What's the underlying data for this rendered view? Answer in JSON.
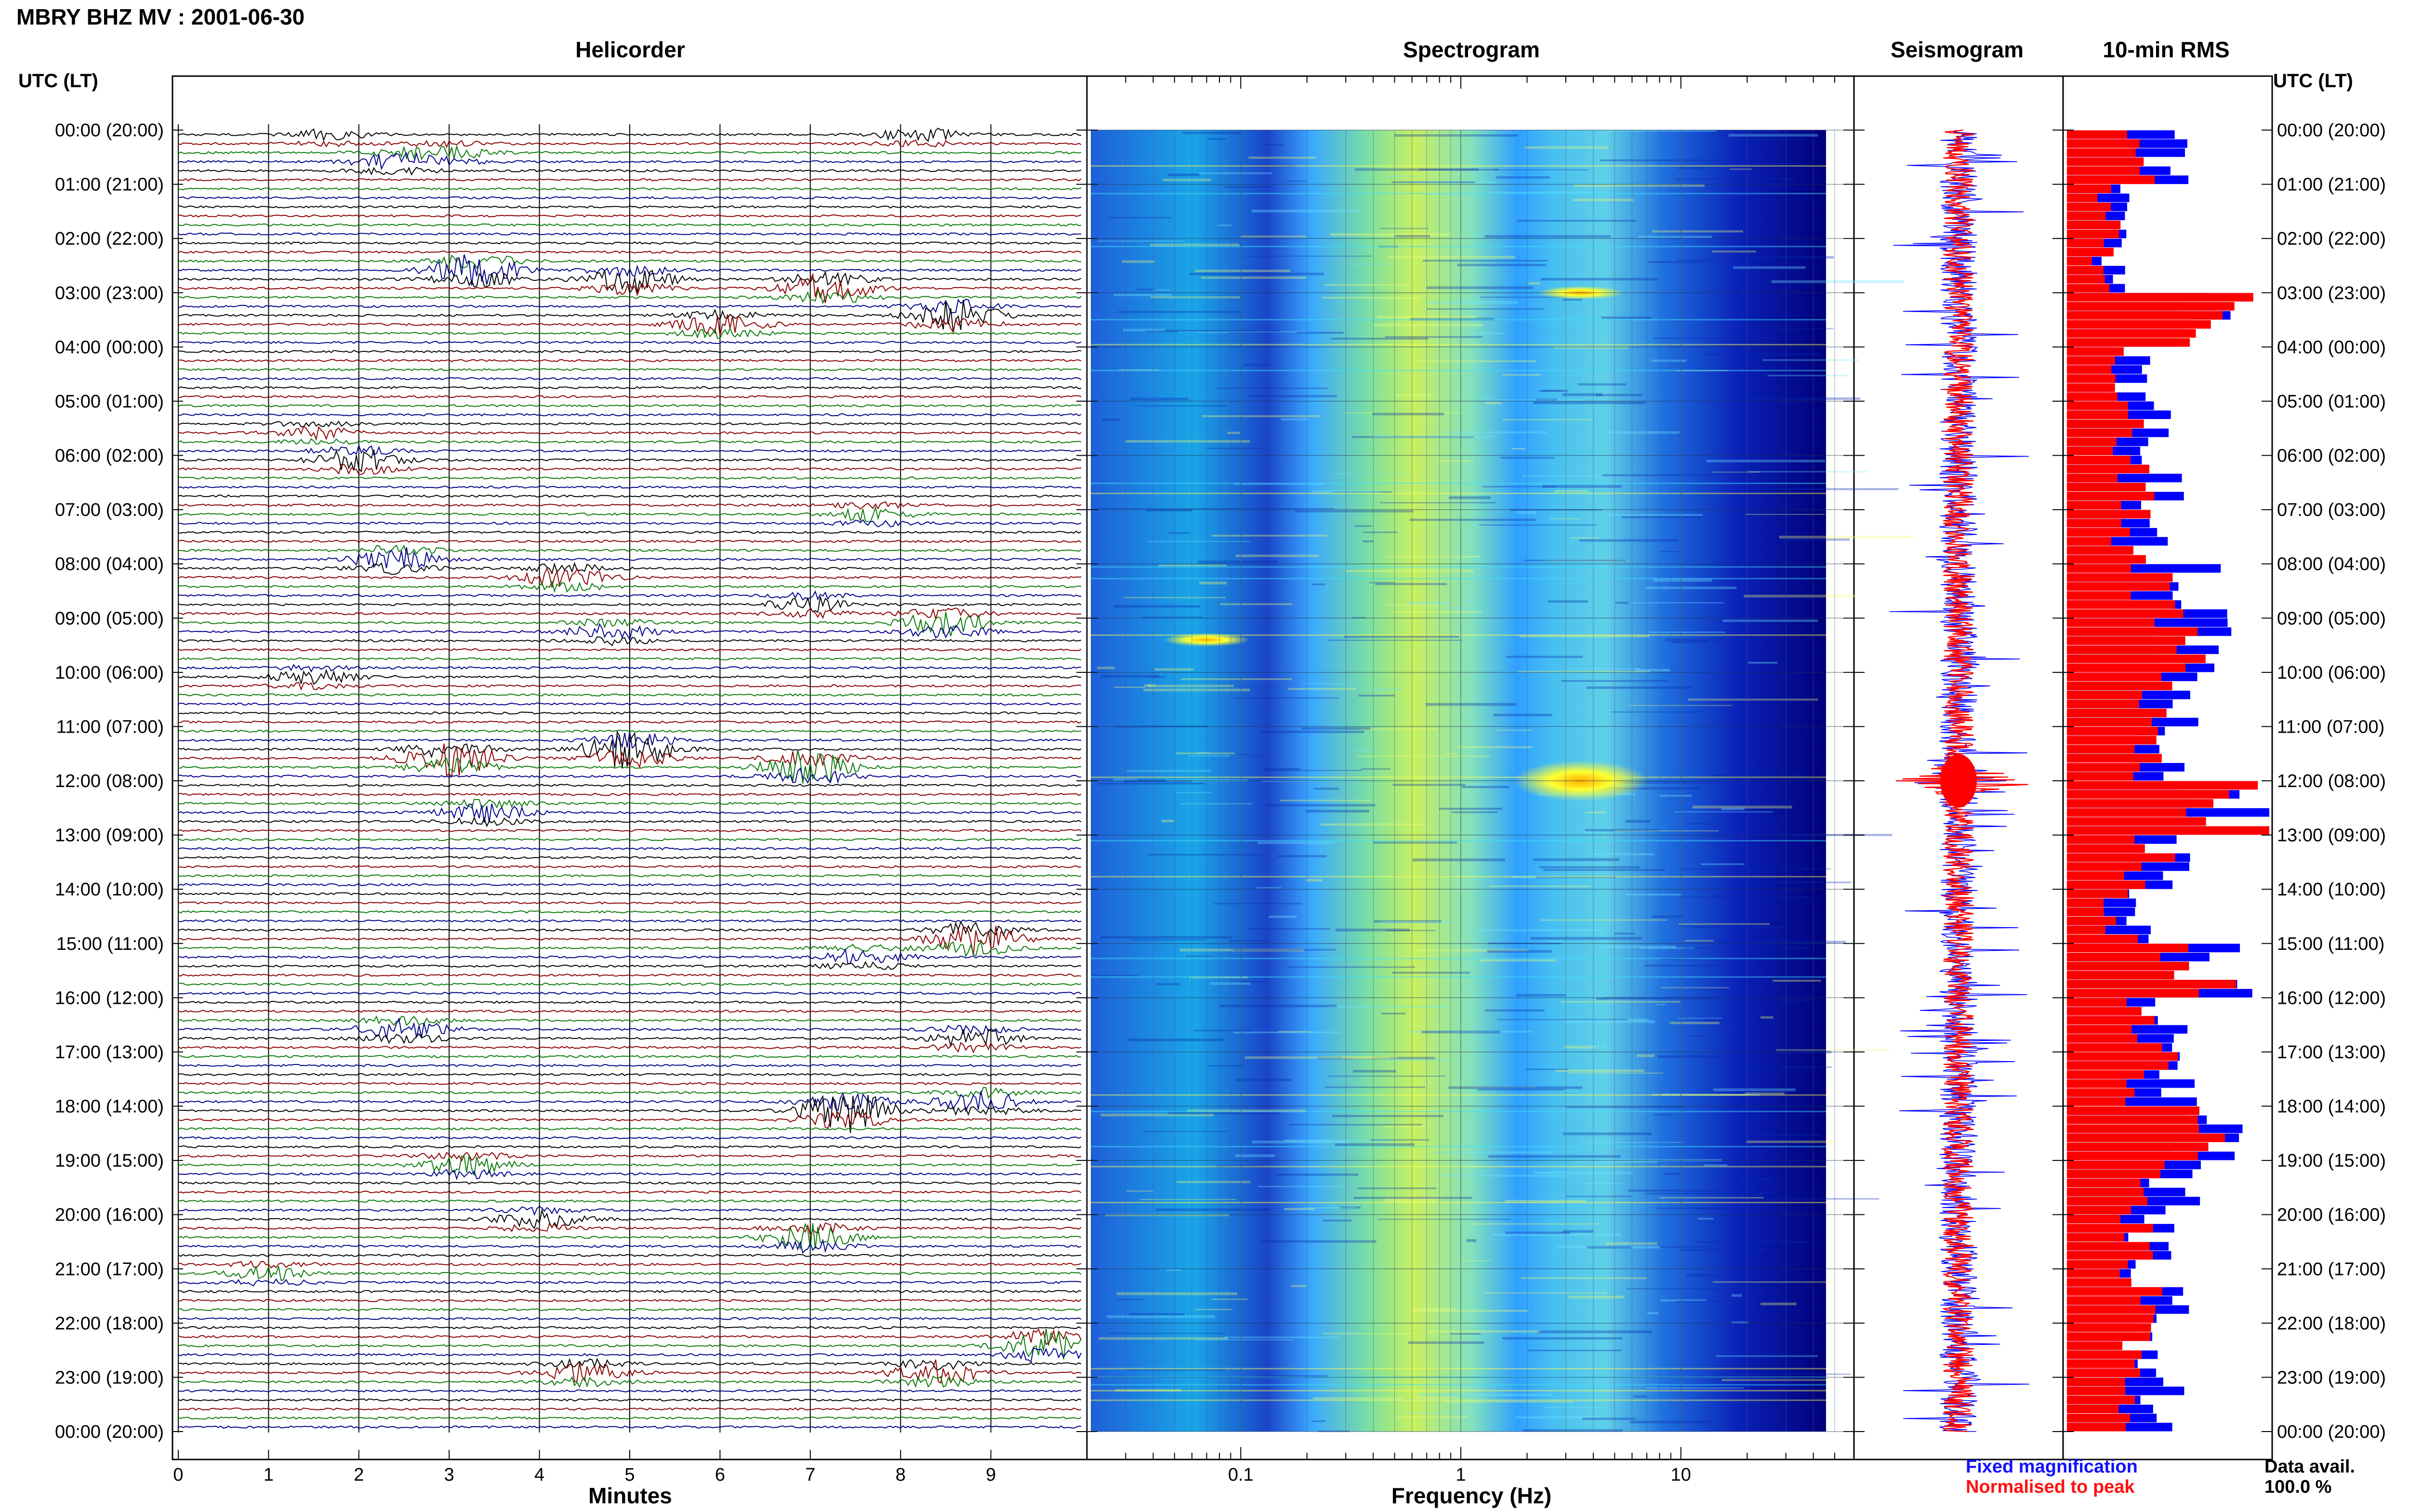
{
  "title": "MBRY BHZ MV : 2001-06-30",
  "panels": {
    "helicorder": "Helicorder",
    "spectrogram": "Spectrogram",
    "seismogram": "Seismogram",
    "rms": "10-min RMS"
  },
  "time_axis_header": "UTC (LT)",
  "time_labels": [
    "00:00 (20:00)",
    "01:00 (21:00)",
    "02:00 (22:00)",
    "03:00 (23:00)",
    "04:00 (00:00)",
    "05:00 (01:00)",
    "06:00 (02:00)",
    "07:00 (03:00)",
    "08:00 (04:00)",
    "09:00 (05:00)",
    "10:00 (06:00)",
    "11:00 (07:00)",
    "12:00 (08:00)",
    "13:00 (09:00)",
    "14:00 (10:00)",
    "15:00 (11:00)",
    "16:00 (12:00)",
    "17:00 (13:00)",
    "18:00 (14:00)",
    "19:00 (15:00)",
    "20:00 (16:00)",
    "21:00 (17:00)",
    "22:00 (18:00)",
    "23:00 (19:00)",
    "00:00 (20:00)"
  ],
  "helicorder_x_label": "Minutes",
  "helicorder_ticks": [
    "0",
    "1",
    "2",
    "3",
    "4",
    "5",
    "6",
    "7",
    "8",
    "9"
  ],
  "spectrogram_x_label": "Frequency (Hz)",
  "spectrogram_ticks": [
    "0.1",
    "1",
    "10"
  ],
  "legend": {
    "fixed": "Fixed magnification",
    "normalised": "Normalised to peak"
  },
  "data_availability": {
    "label": "Data avail.",
    "value": "100.0 %"
  },
  "colors": {
    "trace_cycle": [
      "#000000",
      "#8b0000",
      "#0b7a0b",
      "#00008b"
    ],
    "fixed_magnification": "#0000ff",
    "normalised_to_peak": "#ff0000",
    "spectrogram_low": "#00008b",
    "spectrogram_high": "#ffff00"
  },
  "chart_data": [
    {
      "type": "heatmap",
      "title": "Helicorder",
      "xlabel": "Minutes",
      "ylabel": "UTC (LT)",
      "xlim": [
        0,
        10
      ],
      "traces_per_hour": 6,
      "hours": 24,
      "events": [
        {
          "hour": 0.0,
          "minute": 1.7,
          "amp": 0.8
        },
        {
          "hour": 0.0,
          "minute": 8.2,
          "amp": 1.0
        },
        {
          "hour": 0.3,
          "minute": 3.0,
          "amp": 0.9
        },
        {
          "hour": 0.5,
          "minute": 2.4,
          "amp": 1.2
        },
        {
          "hour": 2.5,
          "minute": 3.3,
          "amp": 2.5
        },
        {
          "hour": 2.7,
          "minute": 5.0,
          "amp": 2.0
        },
        {
          "hour": 2.8,
          "minute": 7.2,
          "amp": 2.2
        },
        {
          "hour": 3.4,
          "minute": 8.6,
          "amp": 2.4
        },
        {
          "hour": 3.5,
          "minute": 6.0,
          "amp": 1.6
        },
        {
          "hour": 5.5,
          "minute": 1.5,
          "amp": 0.9
        },
        {
          "hour": 6.0,
          "minute": 2.0,
          "amp": 1.6
        },
        {
          "hour": 7.0,
          "minute": 7.7,
          "amp": 1.1
        },
        {
          "hour": 7.8,
          "minute": 2.4,
          "amp": 1.8
        },
        {
          "hour": 8.2,
          "minute": 4.3,
          "amp": 1.6
        },
        {
          "hour": 8.6,
          "minute": 7.0,
          "amp": 1.2
        },
        {
          "hour": 9.0,
          "minute": 8.5,
          "amp": 2.0
        },
        {
          "hour": 9.1,
          "minute": 4.8,
          "amp": 1.3
        },
        {
          "hour": 10.0,
          "minute": 1.5,
          "amp": 1.0
        },
        {
          "hour": 11.3,
          "minute": 5.0,
          "amp": 3.0
        },
        {
          "hour": 11.5,
          "minute": 3.0,
          "amp": 3.0
        },
        {
          "hour": 11.7,
          "minute": 7.0,
          "amp": 2.6
        },
        {
          "hour": 12.5,
          "minute": 3.4,
          "amp": 1.4
        },
        {
          "hour": 14.9,
          "minute": 8.8,
          "amp": 2.6
        },
        {
          "hour": 15.2,
          "minute": 7.6,
          "amp": 1.2
        },
        {
          "hour": 16.5,
          "minute": 2.5,
          "amp": 1.6
        },
        {
          "hour": 16.6,
          "minute": 8.8,
          "amp": 1.4
        },
        {
          "hour": 18.0,
          "minute": 7.4,
          "amp": 3.2
        },
        {
          "hour": 17.8,
          "minute": 8.9,
          "amp": 1.6
        },
        {
          "hour": 19.0,
          "minute": 3.2,
          "amp": 1.5
        },
        {
          "hour": 20.0,
          "minute": 4.0,
          "amp": 1.3
        },
        {
          "hour": 20.4,
          "minute": 7.0,
          "amp": 2.0
        },
        {
          "hour": 21.0,
          "minute": 1.0,
          "amp": 1.0
        },
        {
          "hour": 22.3,
          "minute": 9.6,
          "amp": 2.4
        },
        {
          "hour": 22.8,
          "minute": 4.5,
          "amp": 1.4
        },
        {
          "hour": 22.9,
          "minute": 8.4,
          "amp": 1.8
        }
      ]
    },
    {
      "type": "heatmap",
      "title": "Spectrogram",
      "xlabel": "Frequency (Hz)",
      "xscale": "log",
      "xlim": [
        0.02,
        50
      ],
      "ylabel": "UTC (LT)",
      "colormap": "jet",
      "notes_bands": [
        {
          "freq_from": 0.25,
          "freq_to": 0.6,
          "level": "high"
        },
        {
          "freq_from": 2,
          "freq_to": 6,
          "level": "medium"
        },
        {
          "freq_from": 20,
          "freq_to": 40,
          "level": "low"
        }
      ],
      "hot_spots": [
        {
          "hour": 12.0,
          "freq": 3.5,
          "level": "very high"
        },
        {
          "hour": 9.4,
          "freq": 0.07,
          "level": "high"
        },
        {
          "hour": 3.0,
          "freq": 3.5,
          "level": "high"
        }
      ]
    },
    {
      "type": "line",
      "title": "Seismogram",
      "series": [
        {
          "name": "Fixed magnification",
          "color": "#0000ff"
        },
        {
          "name": "Normalised to peak",
          "color": "#ff0000"
        }
      ],
      "peak_hour": 12.0
    },
    {
      "type": "bar",
      "title": "10-min RMS",
      "orientation": "horizontal",
      "bins_per_hour": 6,
      "series": [
        {
          "name": "Fixed magnification",
          "color": "#0000ff",
          "hourly_values": [
            0.55,
            0.3,
            0.28,
            0.95,
            0.38,
            0.48,
            0.55,
            0.5,
            0.72,
            0.75,
            0.6,
            0.55,
            1.0,
            0.65,
            0.42,
            0.88,
            0.58,
            0.65,
            0.8,
            0.65,
            0.5,
            0.55,
            0.45,
            0.55
          ]
        },
        {
          "name": "Normalised to peak",
          "color": "#ff0000",
          "hourly_values": [
            0.4,
            0.25,
            0.22,
            0.85,
            0.3,
            0.35,
            0.4,
            0.38,
            0.55,
            0.65,
            0.48,
            0.45,
            0.95,
            0.5,
            0.32,
            0.8,
            0.45,
            0.52,
            0.75,
            0.55,
            0.4,
            0.45,
            0.38,
            0.45
          ]
        }
      ]
    }
  ]
}
